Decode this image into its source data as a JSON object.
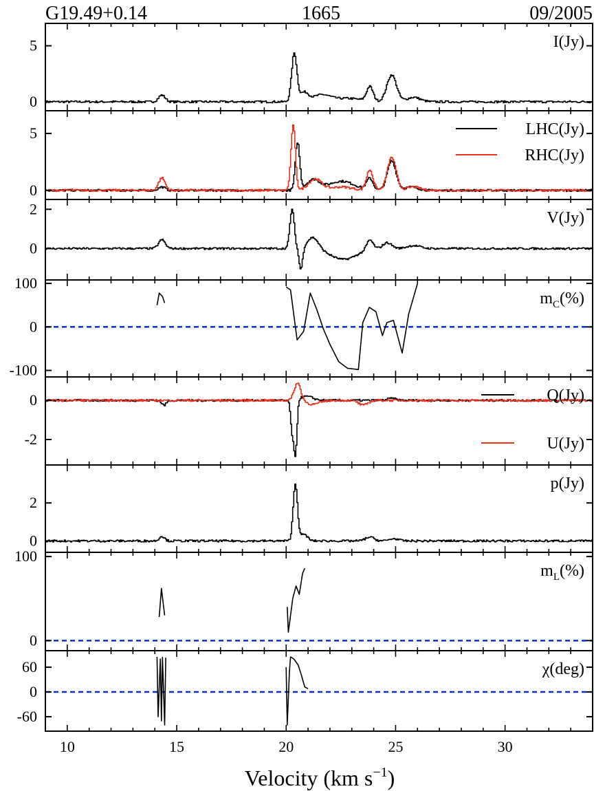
{
  "header": {
    "source": "G19.49+0.14",
    "frequency": "1665",
    "date": "09/2005"
  },
  "colors": {
    "black": "#000000",
    "red": "#e8321e",
    "zero_line": "#0a2fd6"
  },
  "chart_data": {
    "type": "line",
    "xlabel_main": "Velocity (km s",
    "xlabel_sup": "−1",
    "xlabel_close": ")",
    "xlim": [
      9,
      34
    ],
    "xticks": [
      10,
      15,
      20,
      25,
      30
    ],
    "xtick_labels": [
      "10",
      "15",
      "20",
      "25",
      "30"
    ],
    "panels": [
      {
        "id": "I",
        "label": "I(Jy)",
        "ylim": [
          -0.8,
          7
        ],
        "yticks": [
          0,
          5
        ],
        "ytick_labels": [
          "0",
          "5"
        ],
        "zero_line": false,
        "series": [
          {
            "color": "#000000",
            "features": [
              [
                14.3,
                0.6,
                0.15
              ],
              [
                20.35,
                4.3,
                0.12
              ],
              [
                20.8,
                0.8,
                0.2
              ],
              [
                21.6,
                0.6,
                0.4
              ],
              [
                22.8,
                0.3,
                0.6
              ],
              [
                23.8,
                1.3,
                0.15
              ],
              [
                24.8,
                2.4,
                0.22
              ],
              [
                25.8,
                0.4,
                0.3
              ]
            ]
          }
        ]
      },
      {
        "id": "LR",
        "label": "",
        "ylim": [
          -0.8,
          7
        ],
        "yticks": [
          0,
          5
        ],
        "ytick_labels": [
          "0",
          "5"
        ],
        "zero_line": false,
        "legend": [
          {
            "name": "LHC(Jy)",
            "color": "#000000"
          },
          {
            "name": "RHC(Jy)",
            "color": "#e8321e"
          }
        ],
        "series": [
          {
            "name": "LHC(Jy)",
            "color": "#000000",
            "features": [
              [
                14.3,
                0.3,
                0.15
              ],
              [
                20.5,
                4.2,
                0.1
              ],
              [
                21.2,
                0.9,
                0.3
              ],
              [
                22.5,
                0.8,
                0.6
              ],
              [
                23.8,
                1.0,
                0.15
              ],
              [
                24.8,
                2.6,
                0.2
              ],
              [
                25.7,
                0.3,
                0.3
              ]
            ]
          },
          {
            "name": "RHC(Jy)",
            "color": "#e8321e",
            "features": [
              [
                14.3,
                1.1,
                0.15
              ],
              [
                20.3,
                5.7,
                0.1
              ],
              [
                21.3,
                1.0,
                0.3
              ],
              [
                22.5,
                0.3,
                0.5
              ],
              [
                23.8,
                1.8,
                0.15
              ],
              [
                24.8,
                2.9,
                0.2
              ],
              [
                25.8,
                0.3,
                0.3
              ]
            ]
          }
        ]
      },
      {
        "id": "V",
        "label": "V(Jy)",
        "ylim": [
          -1.6,
          2.5
        ],
        "yticks": [
          0,
          2
        ],
        "ytick_labels": [
          "0",
          "2"
        ],
        "zero_line": false,
        "series": [
          {
            "color": "#000000",
            "features": [
              [
                14.3,
                0.45,
                0.15
              ],
              [
                20.25,
                2.0,
                0.1
              ],
              [
                20.65,
                -1.1,
                0.08
              ],
              [
                21.2,
                0.6,
                0.25
              ],
              [
                22.6,
                -0.55,
                0.6
              ],
              [
                23.8,
                0.5,
                0.15
              ],
              [
                24.6,
                0.3,
                0.2
              ],
              [
                25.8,
                0.15,
                0.3
              ]
            ]
          }
        ]
      },
      {
        "id": "mC",
        "label_main": "m",
        "label_sub": "C",
        "label_tail": "(%)",
        "ylim": [
          -115,
          108
        ],
        "yticks": [
          -100,
          0,
          100
        ],
        "ytick_labels": [
          "-100",
          "0",
          "100"
        ],
        "zero_line": true,
        "segments": [
          {
            "color": "#000000",
            "points": [
              [
                14.1,
                50
              ],
              [
                14.2,
                78
              ],
              [
                14.35,
                70
              ],
              [
                14.45,
                55
              ]
            ]
          },
          {
            "color": "#000000",
            "points": [
              [
                20.0,
                92
              ],
              [
                20.2,
                85
              ],
              [
                20.5,
                -30
              ],
              [
                20.8,
                -10
              ],
              [
                21.1,
                78
              ],
              [
                21.4,
                40
              ],
              [
                21.7,
                -5
              ],
              [
                22.0,
                -40
              ],
              [
                22.4,
                -80
              ],
              [
                22.8,
                -95
              ],
              [
                23.3,
                -98
              ],
              [
                23.5,
                10
              ],
              [
                23.8,
                45
              ],
              [
                24.1,
                35
              ],
              [
                24.4,
                -20
              ],
              [
                24.6,
                10
              ],
              [
                24.9,
                15
              ],
              [
                25.3,
                -60
              ],
              [
                25.6,
                30
              ],
              [
                26.0,
                100
              ]
            ]
          }
        ]
      },
      {
        "id": "QU",
        "label": "",
        "ylim": [
          -3.3,
          1.2
        ],
        "yticks": [
          -2,
          0
        ],
        "ytick_labels": [
          "-2",
          "0"
        ],
        "zero_line": false,
        "legend": [
          {
            "name": "Q(Jy)",
            "color": "#000000"
          },
          {
            "name": "U(Jy)",
            "color": "#e8321e"
          }
        ],
        "series": [
          {
            "name": "Q(Jy)",
            "color": "#000000",
            "features": [
              [
                14.4,
                -0.25,
                0.1
              ],
              [
                20.25,
                -1.5,
                0.07
              ],
              [
                20.4,
                -2.8,
                0.07
              ],
              [
                20.9,
                0.2,
                0.3
              ],
              [
                24.8,
                0.1,
                0.2
              ]
            ]
          },
          {
            "name": "U(Jy)",
            "color": "#e8321e",
            "features": [
              [
                20.5,
                0.9,
                0.15
              ],
              [
                21.2,
                -0.2,
                0.3
              ],
              [
                23.5,
                -0.25,
                0.2
              ]
            ]
          }
        ]
      },
      {
        "id": "p",
        "label": "p(Jy)",
        "ylim": [
          -0.6,
          4
        ],
        "yticks": [
          0,
          2
        ],
        "ytick_labels": [
          "0",
          "2"
        ],
        "zero_line": false,
        "series": [
          {
            "color": "#000000",
            "features": [
              [
                14.3,
                0.25,
                0.12
              ],
              [
                20.4,
                3.0,
                0.1
              ],
              [
                20.8,
                0.35,
                0.15
              ],
              [
                23.8,
                0.2,
                0.2
              ],
              [
                24.9,
                0.12,
                0.2
              ]
            ]
          }
        ]
      },
      {
        "id": "mL",
        "label_main": "m",
        "label_sub": "L",
        "label_tail": "(%)",
        "ylim": [
          -12,
          105
        ],
        "yticks": [
          0,
          100
        ],
        "ytick_labels": [
          "0",
          "100"
        ],
        "zero_line": true,
        "segments": [
          {
            "color": "#000000",
            "points": [
              [
                14.2,
                28
              ],
              [
                14.3,
                62
              ],
              [
                14.45,
                30
              ]
            ]
          },
          {
            "color": "#000000",
            "points": [
              [
                20.05,
                40
              ],
              [
                20.1,
                10
              ],
              [
                20.3,
                50
              ],
              [
                20.45,
                65
              ],
              [
                20.6,
                55
              ],
              [
                20.75,
                80
              ],
              [
                20.85,
                86
              ]
            ]
          }
        ]
      },
      {
        "id": "chi",
        "label": "χ(deg)",
        "ylim": [
          -95,
          100
        ],
        "yticks": [
          -60,
          0,
          60
        ],
        "ytick_labels": [
          "-60",
          "0",
          "60"
        ],
        "zero_line": true,
        "segments": [
          {
            "color": "#000000",
            "points": [
              [
                14.1,
                85
              ],
              [
                14.15,
                -60
              ],
              [
                14.25,
                80
              ],
              [
                14.3,
                -70
              ],
              [
                14.35,
                84
              ],
              [
                14.45,
                -80
              ],
              [
                14.5,
                83
              ]
            ]
          },
          {
            "color": "#000000",
            "points": [
              [
                20.0,
                60
              ],
              [
                20.05,
                -80
              ],
              [
                20.15,
                50
              ],
              [
                20.2,
                85
              ],
              [
                20.35,
                80
              ],
              [
                20.55,
                65
              ],
              [
                20.7,
                40
              ],
              [
                20.85,
                12
              ],
              [
                21.0,
                8
              ]
            ]
          }
        ]
      }
    ]
  }
}
